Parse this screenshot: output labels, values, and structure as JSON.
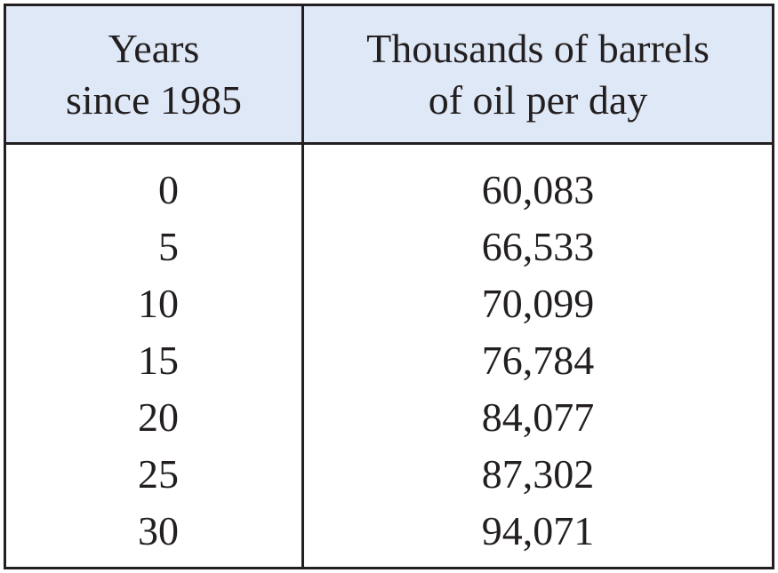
{
  "table": {
    "headers": [
      [
        "Years",
        "since 1985"
      ],
      [
        "Thousands of barrels",
        "of oil per day"
      ]
    ],
    "rows": [
      [
        "0",
        "60,083"
      ],
      [
        "5",
        "66,533"
      ],
      [
        "10",
        "70,099"
      ],
      [
        "15",
        "76,784"
      ],
      [
        "20",
        "84,077"
      ],
      [
        "25",
        "87,302"
      ],
      [
        "30",
        "94,071"
      ]
    ]
  },
  "colors": {
    "header_background": "#dfe8f6",
    "border": "#231f20",
    "text": "#231f20"
  }
}
